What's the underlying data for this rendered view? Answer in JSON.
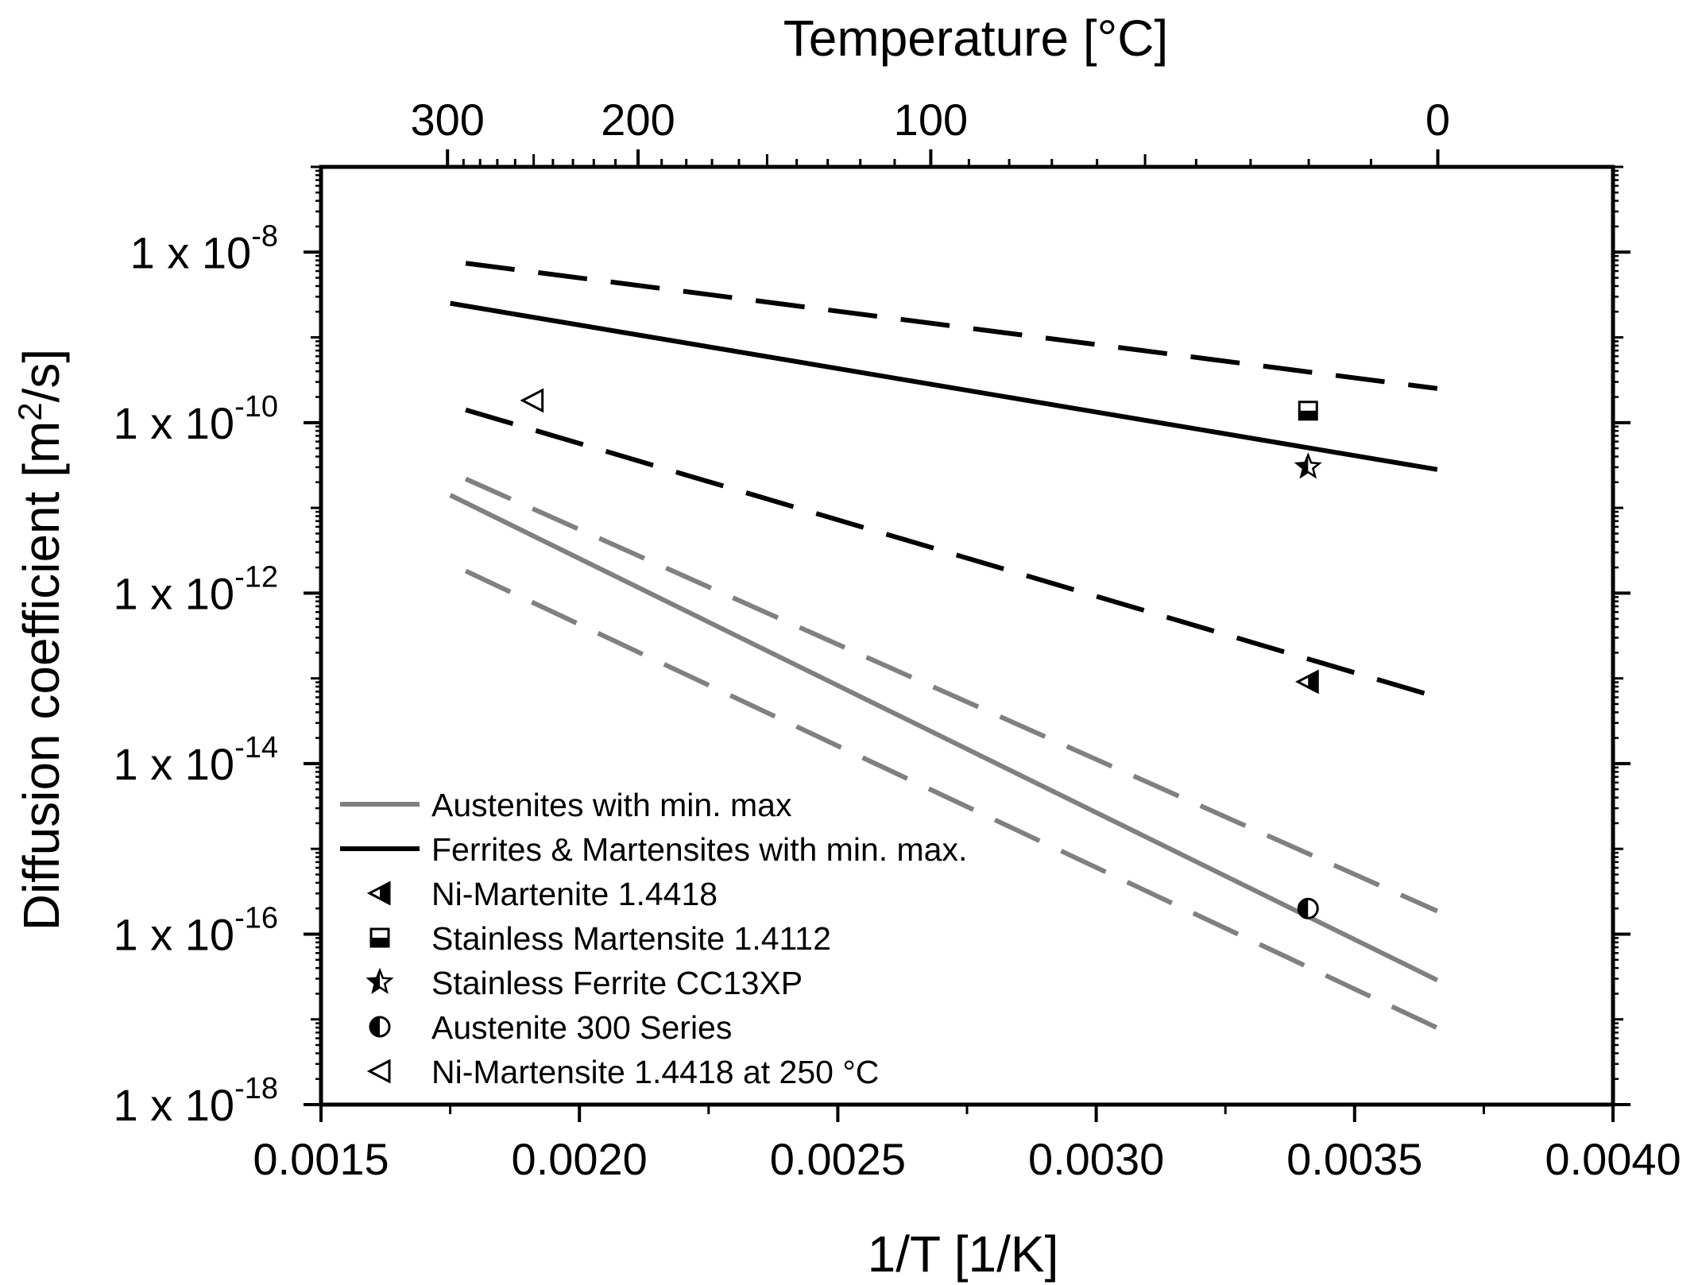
{
  "chart_data": {
    "type": "line",
    "x_axis": {
      "label": "1/T [1/K]",
      "range": [
        0.0015,
        0.004
      ],
      "major_ticks": [
        0.0015,
        0.002,
        0.0025,
        0.003,
        0.0035,
        0.004
      ],
      "tick_labels": [
        "0.0015",
        "0.0020",
        "0.0025",
        "0.0030",
        "0.0035",
        "0.0040"
      ]
    },
    "top_axis": {
      "label": "Temperature [°C]",
      "ticks_celsius": [
        300,
        200,
        100,
        0
      ],
      "tick_labels": [
        "300",
        "200",
        "100",
        "0"
      ]
    },
    "y_axis": {
      "label_main": "Diffusion coefficient [m",
      "label_sup": "2",
      "label_end": "/s]",
      "scale": "log10",
      "range_log10": [
        -18,
        -7
      ],
      "major_ticks_log10": [
        -18,
        -16,
        -14,
        -12,
        -10,
        -8
      ],
      "tick_base": "1 x 10",
      "tick_exponents": [
        "-18",
        "-16",
        "-14",
        "-12",
        "-10",
        "-8"
      ]
    },
    "series": [
      {
        "name": "Ferrites & Martensites",
        "color": "#000000",
        "style": "solid",
        "x": [
          0.00175,
          0.00366
        ],
        "log10_y": [
          -8.6,
          -10.55
        ]
      },
      {
        "name": "Ferrites & Martensites max",
        "color": "#000000",
        "style": "dashed",
        "x": [
          0.00178,
          0.00366
        ],
        "log10_y": [
          -8.13,
          -9.6
        ]
      },
      {
        "name": "Ferrites & Martensites min",
        "color": "#000000",
        "style": "dashed",
        "x": [
          0.00178,
          0.00366
        ],
        "log10_y": [
          -9.85,
          -13.22
        ]
      },
      {
        "name": "Austenites",
        "color": "#808080",
        "style": "solid",
        "x": [
          0.00175,
          0.00366
        ],
        "log10_y": [
          -10.85,
          -16.54
        ]
      },
      {
        "name": "Austenites max",
        "color": "#808080",
        "style": "dashed",
        "x": [
          0.00178,
          0.00366
        ],
        "log10_y": [
          -10.66,
          -15.73
        ]
      },
      {
        "name": "Austenites min",
        "color": "#808080",
        "style": "dashed",
        "x": [
          0.00178,
          0.00366
        ],
        "log10_y": [
          -11.74,
          -17.1
        ]
      }
    ],
    "points": [
      {
        "name": "Ni-Martenite 1.4418",
        "marker": "left-triangle-half",
        "x": 0.00341,
        "log10_y": -13.04
      },
      {
        "name": "Stainless Martensite 1.4112",
        "marker": "square-half",
        "x": 0.00341,
        "log10_y": -9.86
      },
      {
        "name": "Stainless Ferrite CC13XP",
        "marker": "star-half",
        "x": 0.00341,
        "log10_y": -10.52
      },
      {
        "name": "Austenite 300 Series",
        "marker": "circle-half",
        "x": 0.00341,
        "log10_y": -15.7
      },
      {
        "name": "Ni-Martensite 1.4418 at 250 °C",
        "marker": "left-triangle-open",
        "x": 0.00191,
        "log10_y": -9.74
      }
    ],
    "legend": {
      "placement": "bottom-left",
      "entries": [
        {
          "label": "Austenites with min. max",
          "kind": "line",
          "color": "#808080"
        },
        {
          "label": "Ferrites & Martensites with min. max.",
          "kind": "line",
          "color": "#000000"
        },
        {
          "label": "Ni-Martenite 1.4418",
          "kind": "marker",
          "marker": "left-triangle-half"
        },
        {
          "label": "Stainless Martensite 1.4112",
          "kind": "marker",
          "marker": "square-half"
        },
        {
          "label": "Stainless Ferrite CC13XP",
          "kind": "marker",
          "marker": "star-half"
        },
        {
          "label": "Austenite 300 Series",
          "kind": "marker",
          "marker": "circle-half"
        },
        {
          "label": "Ni-Martensite 1.4418 at 250 °C",
          "kind": "marker",
          "marker": "left-triangle-open"
        }
      ]
    }
  }
}
